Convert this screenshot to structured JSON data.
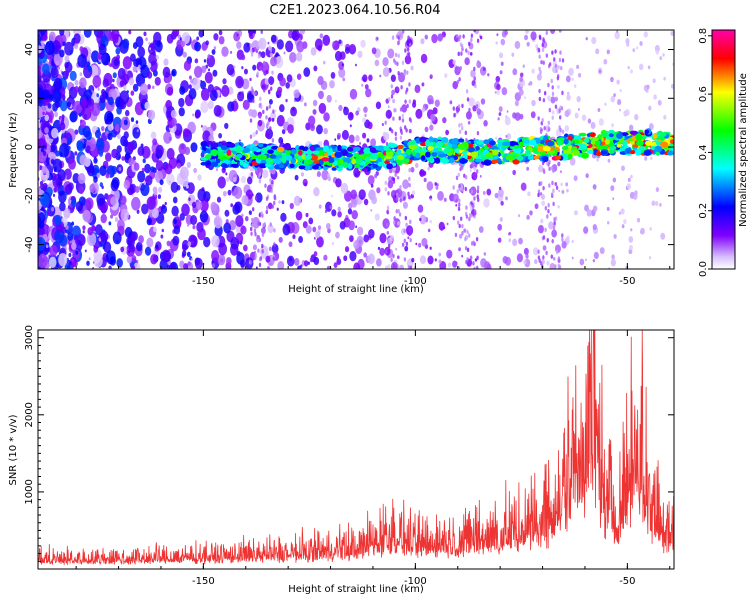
{
  "title": "C2E1.2023.064.10.56.R04",
  "chart_data": [
    {
      "type": "heatmap",
      "xlabel": "Height of straight line (km)",
      "ylabel": "Frequency (Hz)",
      "xlim": [
        -189,
        -39
      ],
      "ylim": [
        -50,
        48
      ],
      "xticks": [
        -150,
        -100,
        -50
      ],
      "yticks": [
        -40,
        -20,
        0,
        20,
        40
      ],
      "colorbar": {
        "label": "Normalized spectral amplitude",
        "range": [
          0.0,
          0.82
        ],
        "ticks": [
          0.0,
          0.2,
          0.4,
          0.6,
          0.8
        ],
        "colors": [
          "#ffffff",
          "#7f00ff",
          "#0000ff",
          "#00ffff",
          "#00ff00",
          "#ffff00",
          "#ff0000",
          "#ff00aa"
        ]
      },
      "ridge": {
        "description_free_points": [
          {
            "x": -189,
            "y": -2
          },
          {
            "x": -150,
            "y": -3
          },
          {
            "x": -110,
            "y": -5
          },
          {
            "x": -100,
            "y": -1
          },
          {
            "x": -80,
            "y": -2
          },
          {
            "x": -65,
            "y": 0
          },
          {
            "x": -50,
            "y": 2
          },
          {
            "x": -39,
            "y": 2
          }
        ],
        "peak_amplitude": 0.82
      }
    },
    {
      "type": "line",
      "xlabel": "Height of straight line (km)",
      "ylabel": "SNR (10 * v/v)",
      "xlim": [
        -189,
        -39
      ],
      "ylim": [
        0,
        3100
      ],
      "xticks": [
        -150,
        -100,
        -50
      ],
      "yticks": [
        1000,
        2000,
        3000
      ],
      "color": "#ee3333",
      "envelope": [
        {
          "x": -189,
          "y": 180
        },
        {
          "x": -170,
          "y": 190
        },
        {
          "x": -150,
          "y": 230
        },
        {
          "x": -130,
          "y": 290
        },
        {
          "x": -115,
          "y": 360
        },
        {
          "x": -105,
          "y": 620
        },
        {
          "x": -100,
          "y": 480
        },
        {
          "x": -90,
          "y": 520
        },
        {
          "x": -80,
          "y": 620
        },
        {
          "x": -72,
          "y": 800
        },
        {
          "x": -66,
          "y": 1200
        },
        {
          "x": -62,
          "y": 1900
        },
        {
          "x": -58,
          "y": 2800
        },
        {
          "x": -55,
          "y": 1100
        },
        {
          "x": -52,
          "y": 1000
        },
        {
          "x": -48,
          "y": 2400
        },
        {
          "x": -45,
          "y": 1300
        },
        {
          "x": -42,
          "y": 800
        },
        {
          "x": -39,
          "y": 700
        }
      ]
    }
  ]
}
